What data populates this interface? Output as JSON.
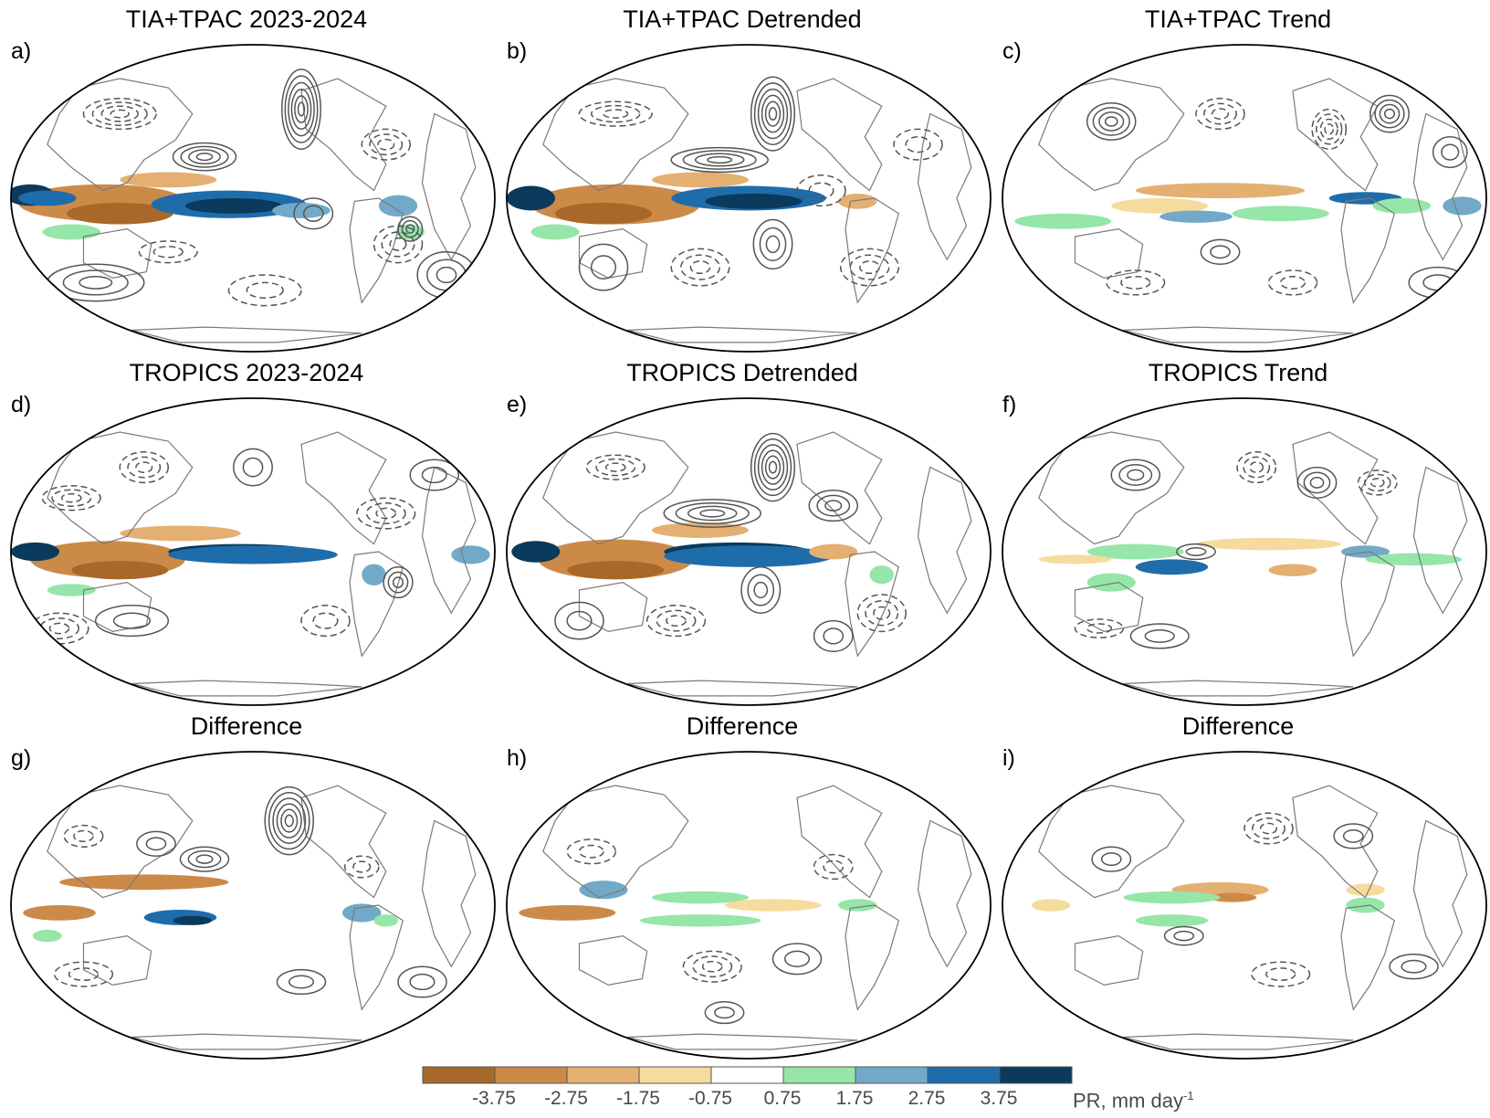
{
  "panels": [
    {
      "letter": "a)",
      "title": "TIA+TPAC 2023-2024"
    },
    {
      "letter": "b)",
      "title": "TIA+TPAC Detrended"
    },
    {
      "letter": "c)",
      "title": "TIA+TPAC Trend"
    },
    {
      "letter": "d)",
      "title": "TROPICS 2023-2024"
    },
    {
      "letter": "e)",
      "title": "TROPICS Detrended"
    },
    {
      "letter": "f)",
      "title": "TROPICS Trend"
    },
    {
      "letter": "g)",
      "title": "Difference"
    },
    {
      "letter": "h)",
      "title": "Difference"
    },
    {
      "letter": "i)",
      "title": "Difference"
    }
  ],
  "colorbar": {
    "tick_labels": [
      "-3.75",
      "-2.75",
      "-1.75",
      "-0.75",
      "0.75",
      "1.75",
      "2.75",
      "3.75"
    ],
    "units_text": "PR, mm day",
    "units_exponent": "-1",
    "colors": [
      "#a8682a",
      "#cc8a49",
      "#e3b072",
      "#f5dc9e",
      "#ffffff",
      "#95e6a8",
      "#72a9c9",
      "#1f6cab",
      "#0a3a5c"
    ]
  },
  "contour_style": {
    "positive": "solid",
    "negative": "dashed",
    "color": "#555555"
  },
  "coastline_color": "#7a7a7a"
}
